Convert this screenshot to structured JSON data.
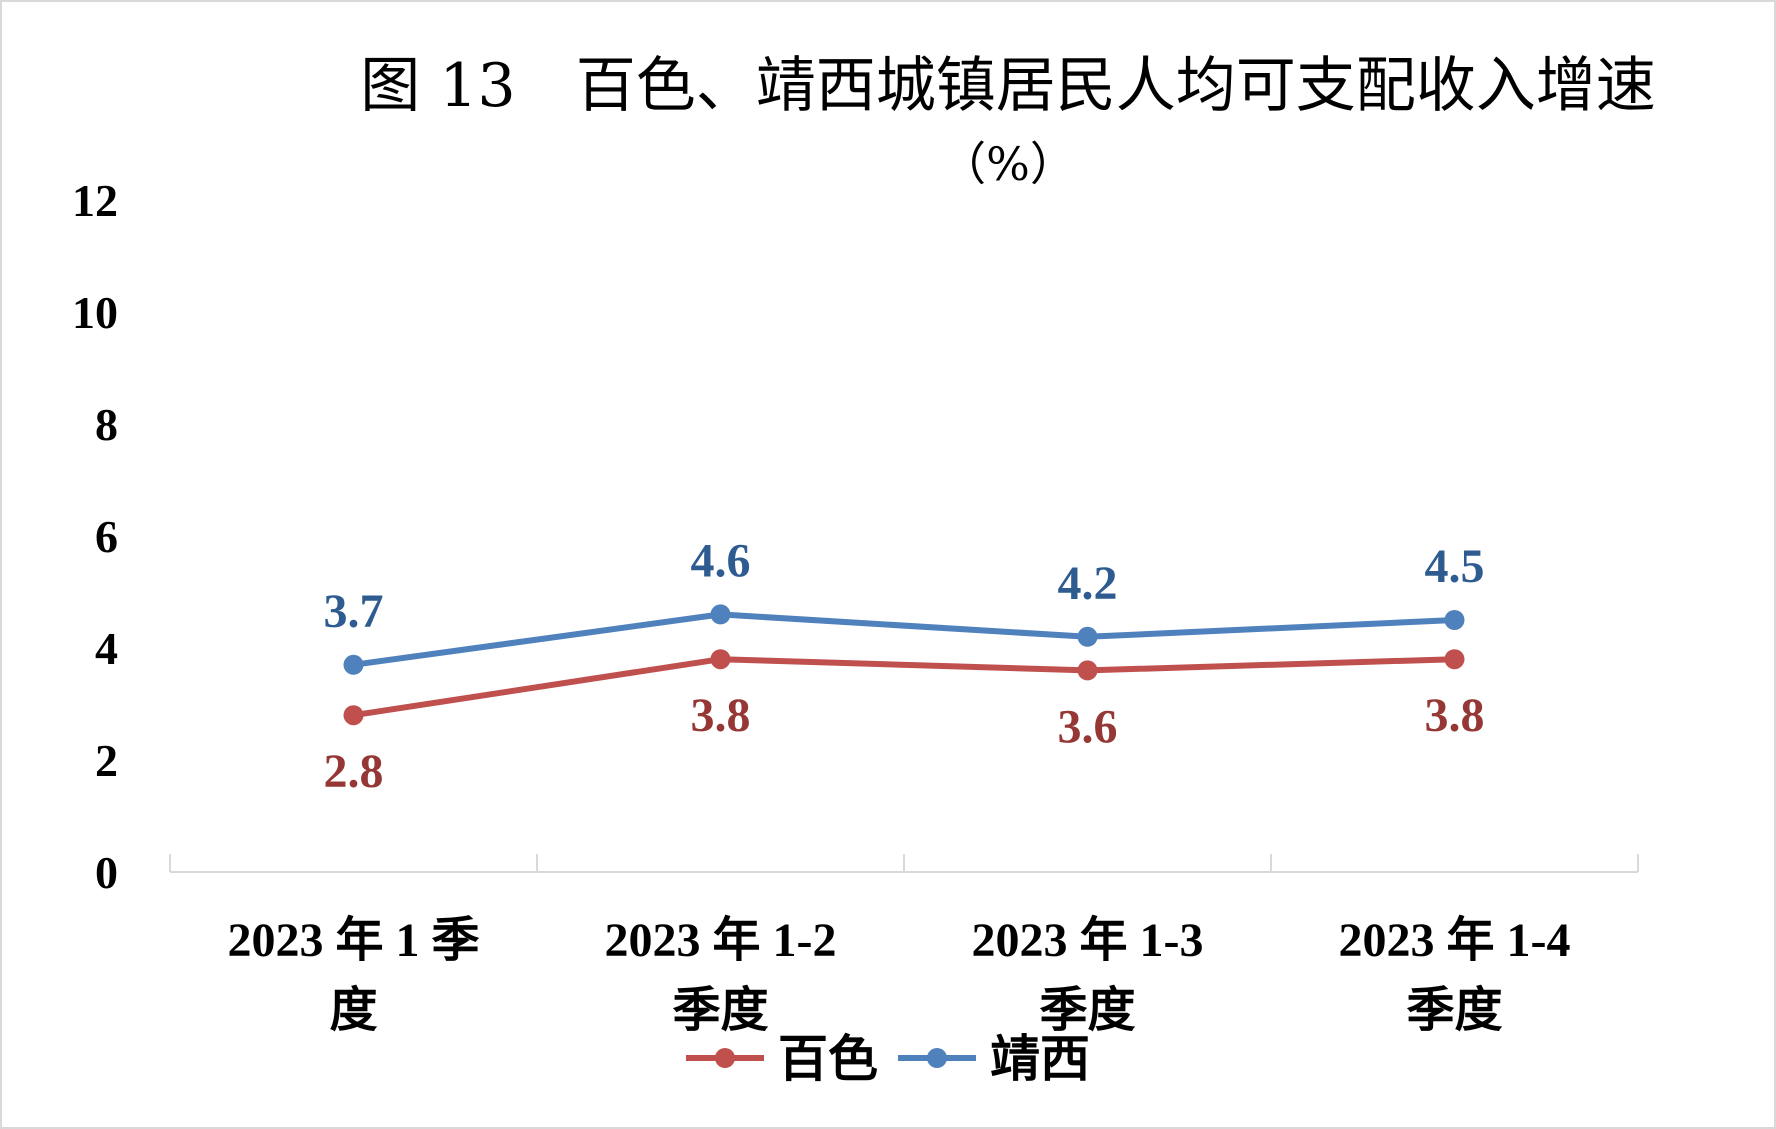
{
  "chart_data": {
    "type": "line",
    "title": "图 13　百色、靖西城镇居民人均可支配收入增速",
    "subtitle": "（%）",
    "categories": [
      [
        "2023 年 1 季",
        "度"
      ],
      [
        "2023 年 1-2",
        "季度"
      ],
      [
        "2023 年 1-3",
        "季度"
      ],
      [
        "2023 年 1-4",
        "季度"
      ]
    ],
    "ylim": [
      0,
      12
    ],
    "yticks": [
      "0",
      "2",
      "4",
      "6",
      "8",
      "10",
      "12"
    ],
    "ytick_values": [
      0,
      2,
      4,
      6,
      8,
      10,
      12
    ],
    "grid": false,
    "legend_position": "bottom",
    "series": [
      {
        "name": "百色",
        "color": "#c0504d",
        "label_color": "#953735",
        "values": [
          2.8,
          3.8,
          3.6,
          3.8
        ],
        "labels": [
          "2.8",
          "3.8",
          "3.6",
          "3.8"
        ],
        "label_side": "below"
      },
      {
        "name": "靖西",
        "color": "#4f81bd",
        "label_color": "#2e5c91",
        "values": [
          3.7,
          4.6,
          4.2,
          4.5
        ],
        "labels": [
          "3.7",
          "4.6",
          "4.2",
          "4.5"
        ],
        "label_side": "above"
      }
    ]
  }
}
